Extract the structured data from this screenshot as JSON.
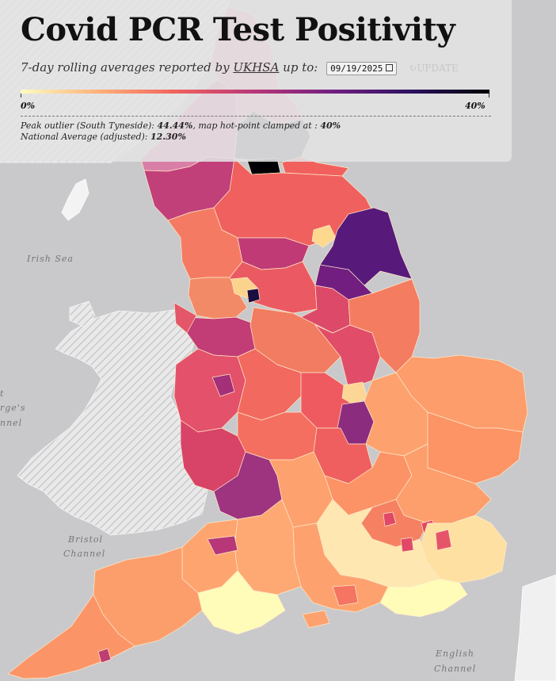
{
  "title": "Covid PCR Test Positivity",
  "subtitle": {
    "prefix": "7-day rolling averages reported by ",
    "source": "UKHSA",
    "suffix": " up to:",
    "date": "09/19/2025",
    "update_label": "UPDATE"
  },
  "scale": {
    "min_label": "0%",
    "max_label": "40%",
    "colors": [
      "#fcfdbf",
      "#feb078",
      "#f1605d",
      "#b73779",
      "#721f81",
      "#2c115f",
      "#000004"
    ]
  },
  "notes": {
    "outlier_prefix": "Peak outlier (South Tyneside): ",
    "outlier_value": "44.44%",
    "outlier_mid": ", map hot-point clamped at : ",
    "clamp_value": "40%",
    "avg_prefix": "National Average (adjusted): ",
    "avg_value": "12.30%"
  },
  "sea_labels": {
    "irish_sea": "Irish Sea",
    "bristol_1": "Bristol",
    "bristol_2": "Channel",
    "stgeorges_1": "t",
    "stgeorges_2": "rge's",
    "stgeorges_3": "nnel",
    "english_1": "English",
    "english_2": "Channel"
  },
  "icons": {
    "refresh": "refresh-icon",
    "calendar": "calendar-icon"
  }
}
